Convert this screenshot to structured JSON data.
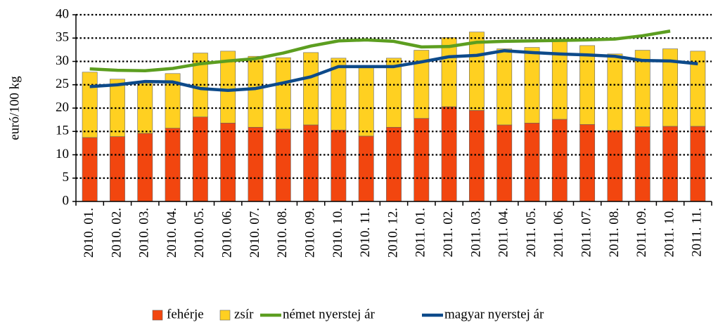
{
  "chart_data": {
    "type": "stacked_bar_line",
    "y_label": "euró/100 kg",
    "categories": [
      "2010. 01.",
      "2010. 02.",
      "2010. 03.",
      "2010. 04.",
      "2010. 05.",
      "2010. 06.",
      "2010. 07.",
      "2010. 08.",
      "2010. 09.",
      "2010. 10.",
      "2010. 11.",
      "2010. 12.",
      "2011. 01.",
      "2011. 02.",
      "2011. 03.",
      "2011. 04.",
      "2011. 05.",
      "2011. 06.",
      "2011. 07.",
      "2011. 08.",
      "2011. 09.",
      "2011. 10.",
      "2011. 11."
    ],
    "series": [
      {
        "name": "fehérje",
        "color": "#f2460f",
        "kind": "bar",
        "values": [
          13.7,
          13.9,
          14.6,
          15.7,
          18.1,
          16.8,
          15.9,
          15.5,
          16.4,
          15.3,
          14.0,
          15.9,
          17.8,
          20.3,
          19.5,
          16.4,
          16.8,
          17.6,
          16.5,
          15.2,
          16.0,
          16.1,
          16.1
        ]
      },
      {
        "name": "zsír",
        "color": "#ffd021",
        "kind": "bar",
        "values": [
          14.0,
          12.3,
          11.2,
          11.7,
          13.7,
          15.4,
          15.2,
          15.3,
          15.5,
          15.4,
          15.0,
          14.8,
          14.6,
          14.8,
          16.8,
          16.3,
          16.2,
          16.9,
          16.9,
          16.4,
          16.4,
          16.6,
          16.1
        ]
      },
      {
        "name": "német nyerstej ár",
        "color": "#5c9e20",
        "kind": "line",
        "values": [
          28.4,
          28.1,
          28.0,
          28.5,
          29.5,
          30.1,
          30.6,
          31.8,
          33.3,
          34.4,
          34.6,
          34.3,
          33.1,
          33.2,
          34.1,
          34.3,
          34.4,
          34.5,
          34.6,
          34.8,
          35.5,
          36.5,
          null
        ]
      },
      {
        "name": "magyar nyerstej ár",
        "color": "#0d4a8a",
        "kind": "line",
        "values": [
          24.6,
          25.0,
          25.7,
          25.6,
          24.2,
          23.8,
          24.2,
          25.4,
          26.7,
          28.9,
          28.9,
          28.9,
          29.9,
          31.0,
          31.3,
          32.3,
          31.9,
          31.6,
          31.4,
          31.1,
          30.2,
          30.1,
          29.5
        ]
      }
    ],
    "ylim": [
      0,
      40
    ],
    "yticks": [
      0,
      5,
      10,
      15,
      20,
      25,
      30,
      35,
      40
    ],
    "grid": true,
    "legend": "bottom"
  }
}
